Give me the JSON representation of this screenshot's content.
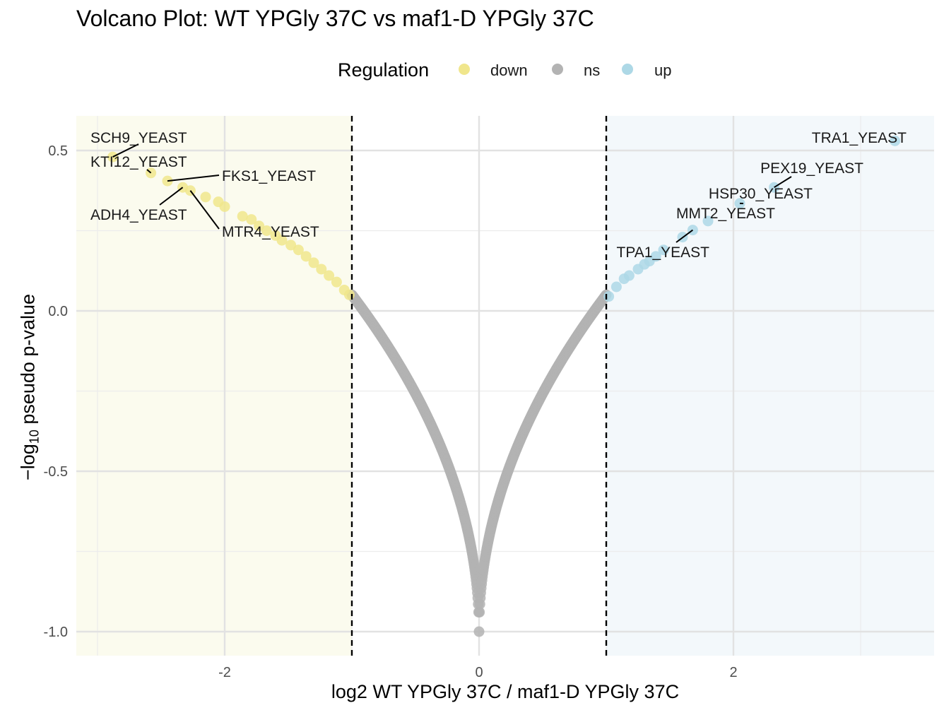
{
  "chart_data": {
    "type": "scatter",
    "title": "Volcano Plot: WT YPGly 37C vs maf1-D YPGly 37C",
    "xlabel": "log2 WT YPGly 37C / maf1-D YPGly 37C",
    "ylabel": {
      "pre": "−log",
      "sub": "10",
      "post": " pseudo p-value"
    },
    "xlim": [
      -3.15,
      3.55
    ],
    "ylim": [
      -1.07,
      0.6
    ],
    "x_ticks": [
      -2,
      0,
      2
    ],
    "x_tick_labels": [
      "-2",
      "0",
      "2"
    ],
    "y_ticks": [
      -1.0,
      -0.5,
      0.0,
      0.5
    ],
    "y_tick_labels": [
      "-1.0",
      "-0.5",
      "0.0",
      "0.5"
    ],
    "grid": true,
    "thresholds": [
      -1,
      1
    ],
    "legend": {
      "title": "Regulation",
      "position": "top",
      "entries": [
        {
          "label": "down",
          "color": "#F0E68C"
        },
        {
          "label": "ns",
          "color": "#B3B3B3"
        },
        {
          "label": "up",
          "color": "#ADD8E6"
        }
      ]
    },
    "region_colors": {
      "down": "#FBFBEE",
      "up": "#F3F8FB"
    },
    "curve": {
      "ns_point_count": 600
    },
    "series": [
      {
        "name": "down",
        "color": "#F0E68C",
        "points": [
          {
            "x": -2.88,
            "y": 0.48
          },
          {
            "x": -2.58,
            "y": 0.43
          },
          {
            "x": -2.45,
            "y": 0.405
          },
          {
            "x": -2.33,
            "y": 0.385
          },
          {
            "x": -2.27,
            "y": 0.375
          },
          {
            "x": -2.15,
            "y": 0.355
          },
          {
            "x": -2.05,
            "y": 0.34
          },
          {
            "x": -2.0,
            "y": 0.325
          },
          {
            "x": -1.86,
            "y": 0.295
          },
          {
            "x": -1.79,
            "y": 0.285
          },
          {
            "x": -1.73,
            "y": 0.265
          },
          {
            "x": -1.67,
            "y": 0.25
          },
          {
            "x": -1.6,
            "y": 0.235
          },
          {
            "x": -1.55,
            "y": 0.22
          },
          {
            "x": -1.48,
            "y": 0.205
          },
          {
            "x": -1.42,
            "y": 0.19
          },
          {
            "x": -1.36,
            "y": 0.17
          },
          {
            "x": -1.3,
            "y": 0.15
          },
          {
            "x": -1.24,
            "y": 0.13
          },
          {
            "x": -1.18,
            "y": 0.11
          },
          {
            "x": -1.12,
            "y": 0.09
          },
          {
            "x": -1.06,
            "y": 0.065
          },
          {
            "x": -1.02,
            "y": 0.05
          }
        ]
      },
      {
        "name": "ns",
        "color": "#B3B3B3",
        "equation": "y = 1.0 * (|x|^0.5) * 1.05 - 1.0"
      },
      {
        "name": "up",
        "color": "#ADD8E6",
        "points": [
          {
            "x": 1.02,
            "y": 0.045
          },
          {
            "x": 1.08,
            "y": 0.075
          },
          {
            "x": 1.14,
            "y": 0.1
          },
          {
            "x": 1.18,
            "y": 0.11
          },
          {
            "x": 1.25,
            "y": 0.13
          },
          {
            "x": 1.3,
            "y": 0.145
          },
          {
            "x": 1.34,
            "y": 0.155
          },
          {
            "x": 1.39,
            "y": 0.17
          },
          {
            "x": 1.45,
            "y": 0.19
          },
          {
            "x": 1.6,
            "y": 0.23
          },
          {
            "x": 1.68,
            "y": 0.252
          },
          {
            "x": 1.8,
            "y": 0.28
          },
          {
            "x": 2.05,
            "y": 0.335
          },
          {
            "x": 2.32,
            "y": 0.385
          },
          {
            "x": 3.27,
            "y": 0.53
          }
        ]
      }
    ],
    "annotations": [
      {
        "label": "SCH9_YEAST",
        "x": -2.88,
        "y": 0.48
      },
      {
        "label": "KTI12_YEAST",
        "x": -2.58,
        "y": 0.43
      },
      {
        "label": "FKS1_YEAST",
        "x": -2.45,
        "y": 0.405
      },
      {
        "label": "ADH4_YEAST",
        "x": -2.33,
        "y": 0.385
      },
      {
        "label": "MTR4_YEAST",
        "x": -2.27,
        "y": 0.375
      },
      {
        "label": "TRA1_YEAST",
        "x": 3.27,
        "y": 0.53
      },
      {
        "label": "PEX19_YEAST",
        "x": 2.32,
        "y": 0.385
      },
      {
        "label": "HSP30_YEAST",
        "x": 2.05,
        "y": 0.335
      },
      {
        "label": "MMT2_YEAST",
        "x": 1.8,
        "y": 0.28
      },
      {
        "label": "TPA1_YEAST",
        "x": 1.68,
        "y": 0.252
      }
    ]
  }
}
